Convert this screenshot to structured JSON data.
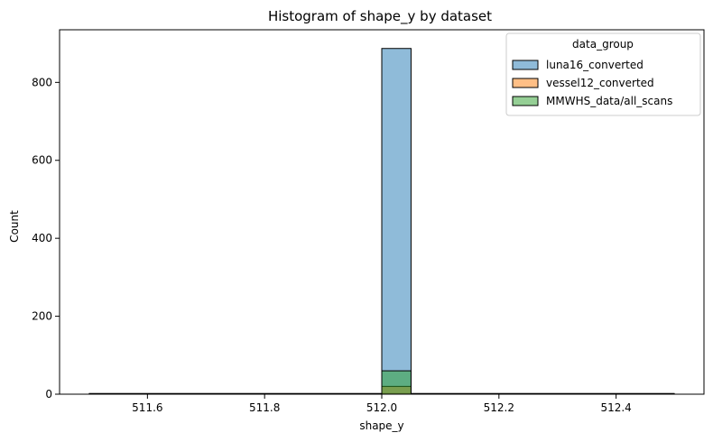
{
  "chart_data": {
    "type": "bar",
    "title": "Histogram of shape_y by dataset",
    "xlabel": "shape_y",
    "ylabel": "Count",
    "xlim": [
      511.45,
      512.55
    ],
    "ylim": [
      0,
      935
    ],
    "xticks": [
      "511.6",
      "511.8",
      "512.0",
      "512.2",
      "512.4"
    ],
    "xtick_values": [
      511.6,
      511.8,
      512.0,
      512.2,
      512.4
    ],
    "yticks": [
      "0",
      "200",
      "400",
      "600",
      "800"
    ],
    "ytick_values": [
      0,
      200,
      400,
      600,
      800
    ],
    "bin_range": [
      511.5,
      512.5
    ],
    "bin_count": 20,
    "grid": false,
    "legend": {
      "title": "data_group",
      "placement": "top-right"
    },
    "series": [
      {
        "name": "luna16_converted",
        "color": "#1f77b4",
        "bin_start": 512.0,
        "bin_end": 512.05,
        "count": 887
      },
      {
        "name": "vessel12_converted",
        "color": "#ff7f0e",
        "bin_start": 512.0,
        "bin_end": 512.05,
        "count": 20
      },
      {
        "name": "MMWHS_data/all_scans",
        "color": "#2ca02c",
        "bin_start": 512.0,
        "bin_end": 512.05,
        "count": 60
      }
    ]
  }
}
